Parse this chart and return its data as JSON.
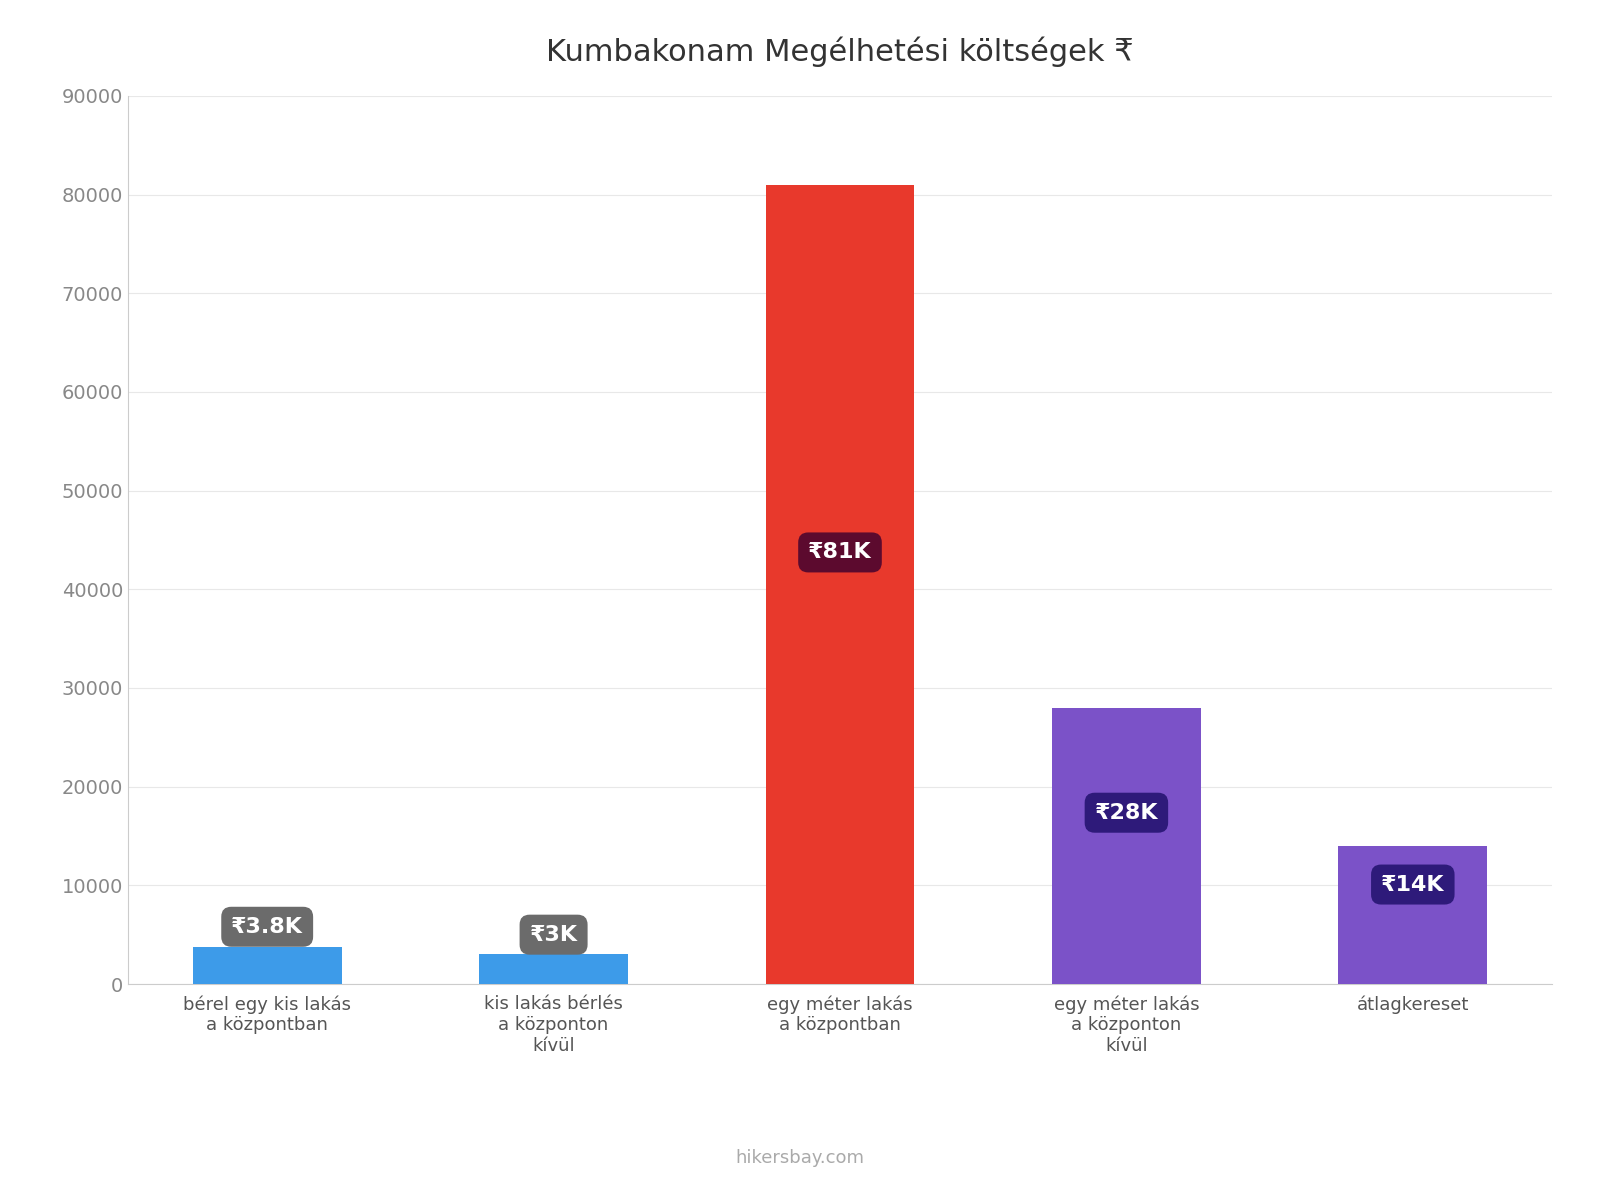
{
  "title": "Kumbakonam Megélhetési költségek ₹",
  "categories": [
    "bérel egy kis lakás\na központban",
    "kis lakás bérlés\na központon\nkívül",
    "egy méter lakás\na központban",
    "egy méter lakás\na központon\nkívül",
    "átlagkereset"
  ],
  "values": [
    3800,
    3000,
    81000,
    28000,
    14000
  ],
  "bar_colors": [
    "#3D9BE9",
    "#3D9BE9",
    "#E8392C",
    "#7B52C8",
    "#7B52C8"
  ],
  "label_texts": [
    "₹3.8K",
    "₹3K",
    "₹81K",
    "₹28K",
    "₹14K"
  ],
  "label_box_colors": [
    "#6B6B6B",
    "#6B6B6B",
    "#5C0A2E",
    "#2E1A7A",
    "#2E1A7A"
  ],
  "ylim": [
    0,
    90000
  ],
  "yticks": [
    0,
    10000,
    20000,
    30000,
    40000,
    50000,
    60000,
    70000,
    80000,
    90000
  ],
  "watermark": "hikersbay.com",
  "background_color": "#FFFFFF",
  "title_fontsize": 22,
  "label_fontsize": 16,
  "tick_fontsize": 14,
  "xtick_fontsize": 13
}
